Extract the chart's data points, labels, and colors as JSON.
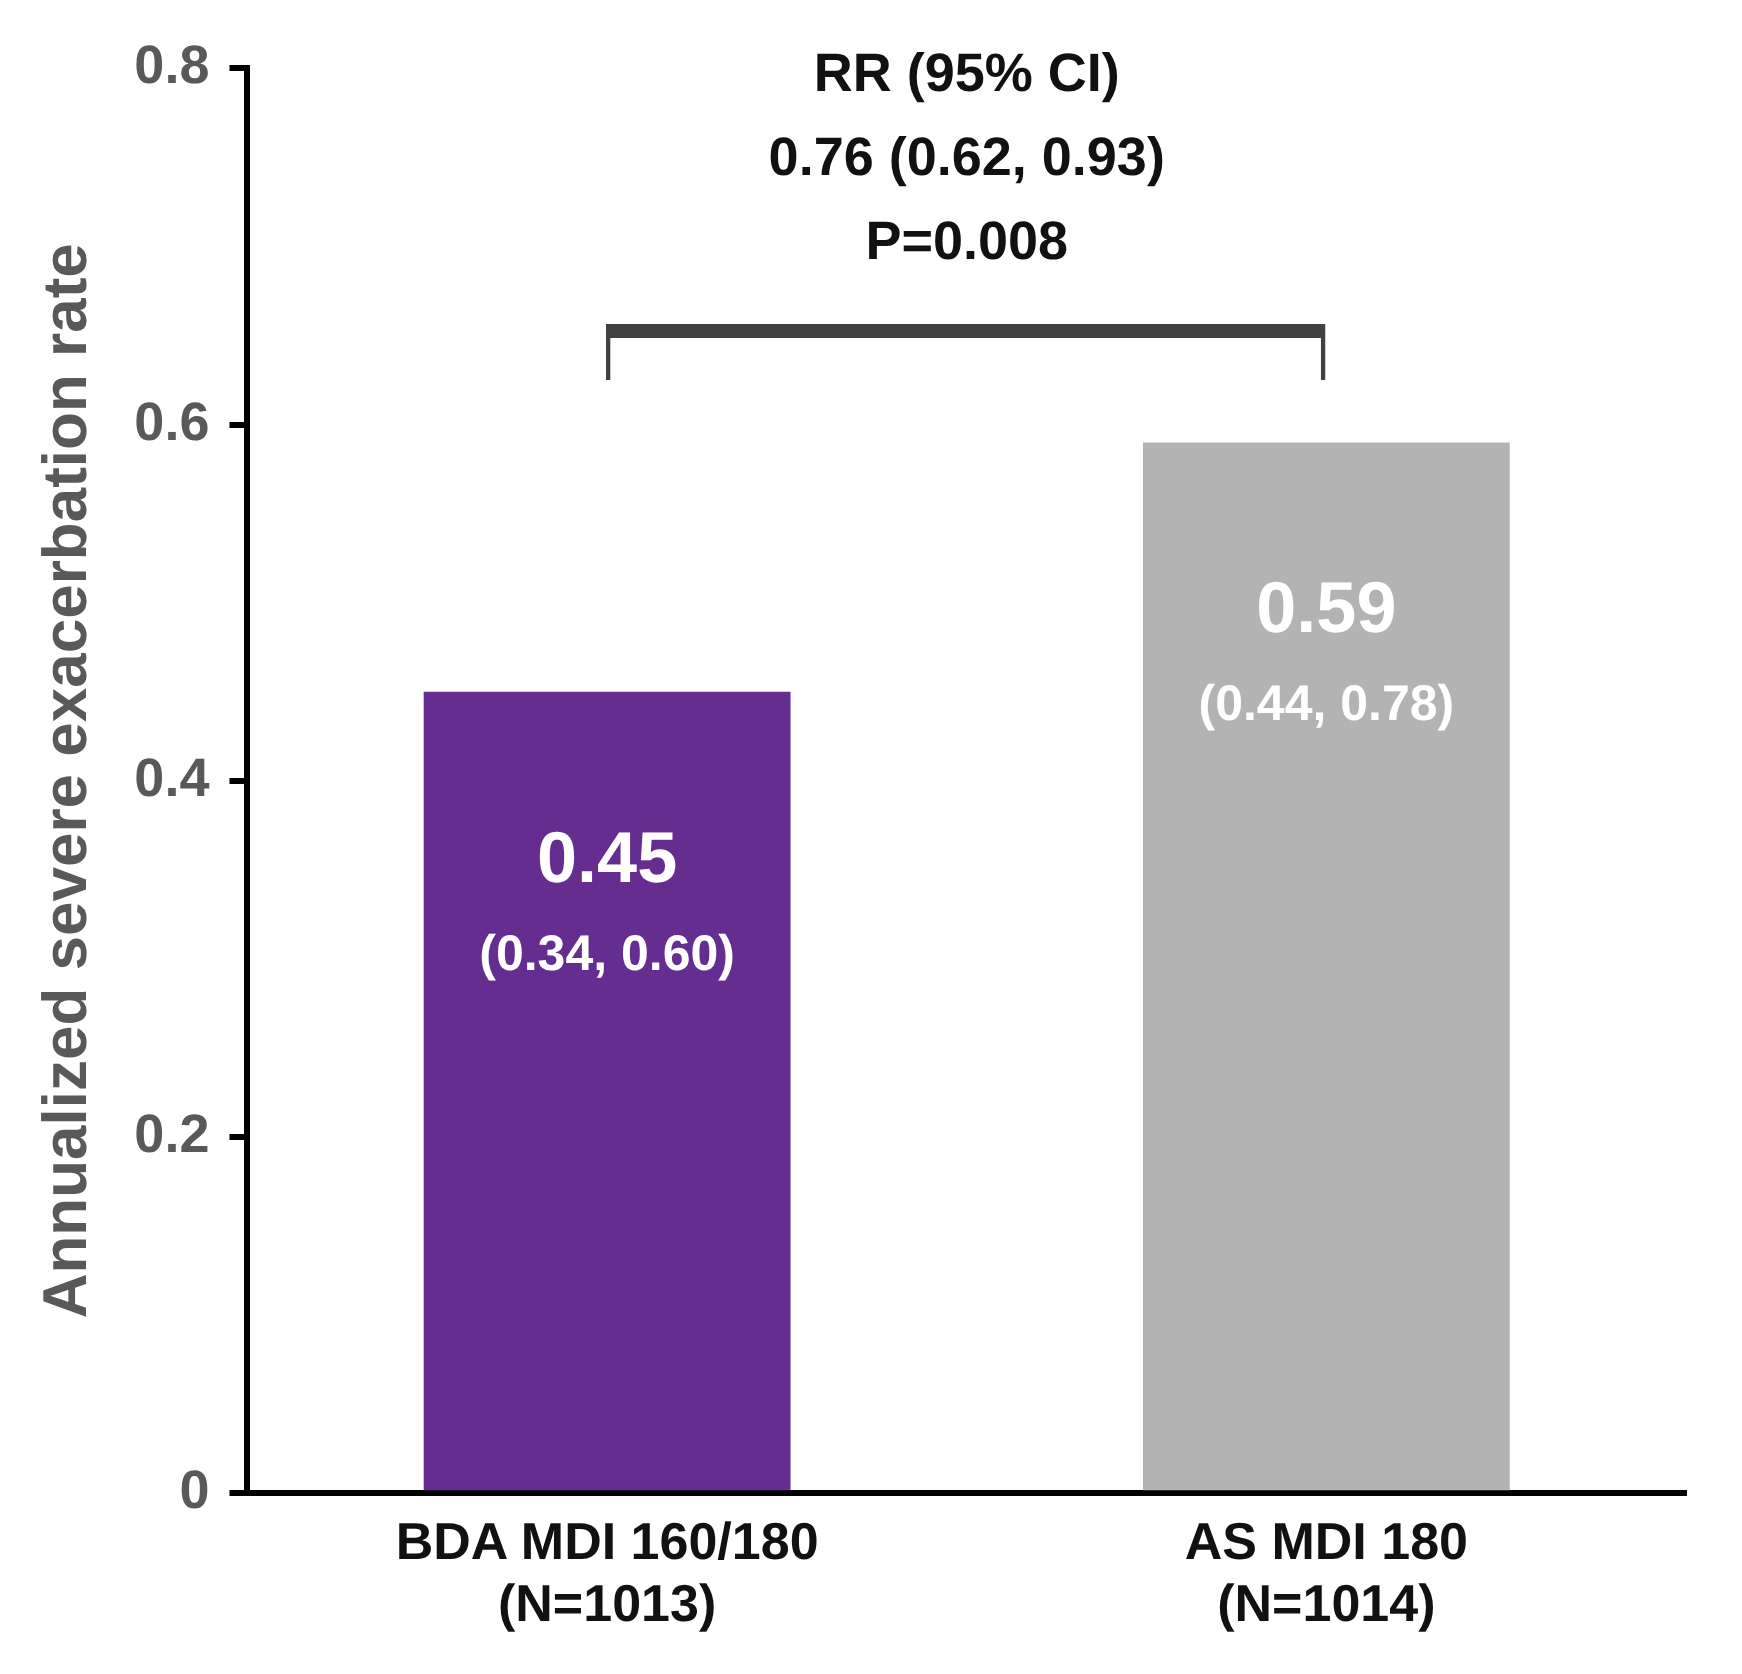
{
  "chart_data": {
    "type": "bar",
    "ylabel": "Annualized severe exacerbation rate",
    "categories": [
      "BDA MDI 160/180\n(N=1013)",
      "AS MDI 180\n(N=1014)"
    ],
    "values": [
      0.45,
      0.59
    ],
    "colors": [
      "#652d90",
      "#b3b3b3"
    ],
    "value_labels": [
      "0.45\n(0.34, 0.60)",
      "0.59\n(0.44, 0.78)"
    ],
    "ylim": [
      0,
      0.8
    ],
    "yticks": [
      0,
      0.2,
      0.4,
      0.6,
      0.8
    ],
    "grid": false,
    "legend": false,
    "annotations": [
      "RR (95% CI)",
      "0.76 (0.62, 0.93)",
      "P=0.008"
    ]
  }
}
